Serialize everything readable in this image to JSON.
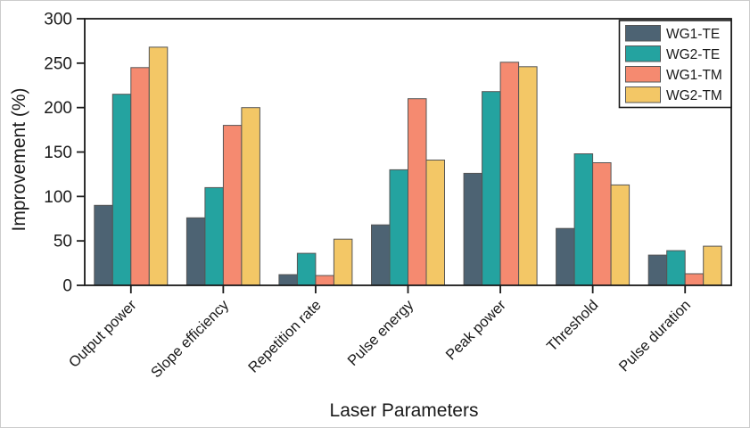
{
  "figure": {
    "background": "#ffffff",
    "frame_color": "#1a1a1a"
  },
  "chart_data": {
    "type": "bar",
    "title": "",
    "xlabel": "Laser Parameters",
    "ylabel": "Improvement (%)",
    "ylim": [
      0,
      300
    ],
    "yticks": [
      0,
      50,
      100,
      150,
      200,
      250,
      300
    ],
    "grid": false,
    "legend_position": "top-right",
    "categories": [
      "Output power",
      "Slope efficiency",
      "Repetition rate",
      "Pulse energy",
      "Peak power",
      "Threshold",
      "Pulse duration"
    ],
    "series": [
      {
        "name": "WG1-TE",
        "color": "#4d6373",
        "values": [
          90,
          76,
          12,
          68,
          126,
          64,
          34
        ]
      },
      {
        "name": "WG2-TE",
        "color": "#24a3a0",
        "values": [
          215,
          110,
          36,
          130,
          218,
          148,
          39
        ]
      },
      {
        "name": "WG1-TM",
        "color": "#f58a70",
        "values": [
          245,
          180,
          11,
          210,
          251,
          138,
          13
        ]
      },
      {
        "name": "WG2-TM",
        "color": "#f3c766",
        "values": [
          268,
          200,
          52,
          141,
          246,
          113,
          44
        ]
      }
    ],
    "bar_outline_color": "#555555",
    "axis_color": "#1a1a1a"
  }
}
